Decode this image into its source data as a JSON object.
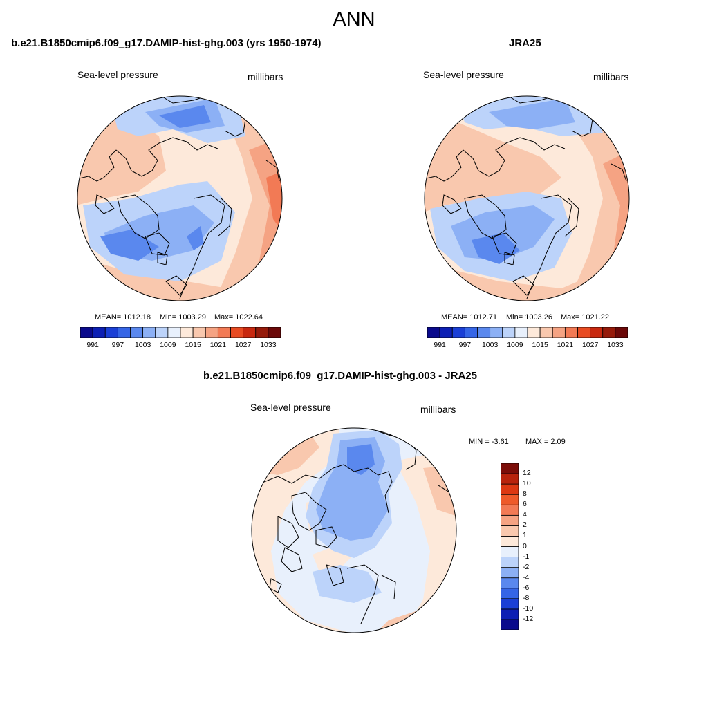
{
  "figure": {
    "title": "ANN"
  },
  "panels": {
    "model": {
      "title": "b.e21.B1850cmip6.f09_g17.DAMIP-hist-ghg.003 (yrs 1950-1974)",
      "left_label": "Sea-level pressure",
      "right_label": "millibars",
      "stats": {
        "mean": "MEAN= 1012.18",
        "min": "Min= 1003.29",
        "max": "Max= 1022.64"
      }
    },
    "obs": {
      "title": "JRA25",
      "left_label": "Sea-level pressure",
      "right_label": "millibars",
      "stats": {
        "mean": "MEAN= 1012.71",
        "min": "Min= 1003.26",
        "max": "Max= 1021.22"
      }
    },
    "diff": {
      "title": "b.e21.B1850cmip6.f09_g17.DAMIP-hist-ghg.003 - JRA25",
      "left_label": "Sea-level pressure",
      "right_label": "millibars",
      "stats": {
        "min": "MIN =  -3.61",
        "max": "MAX =   2.09"
      }
    }
  },
  "colorbars": {
    "field": {
      "colors": [
        "#0a0a8c",
        "#0c1fb4",
        "#1a3fd6",
        "#3565e6",
        "#5a88ee",
        "#8cb0f5",
        "#bcd3fa",
        "#e8f0fc",
        "#fde9da",
        "#f9c8ae",
        "#f5a383",
        "#f27a55",
        "#e84b22",
        "#c8280f",
        "#961a0a",
        "#6b0808"
      ],
      "labels": [
        "991",
        "997",
        "1003",
        "1009",
        "1015",
        "1021",
        "1027",
        "1033"
      ]
    },
    "diff": {
      "colors": [
        "#0a0a8c",
        "#0c1fb4",
        "#1a3fd6",
        "#3565e6",
        "#5a88ee",
        "#8cb0f5",
        "#bcd3fa",
        "#e8f0fc",
        "#fde9da",
        "#f9c8ae",
        "#f5a383",
        "#f27a55",
        "#ee5a2a",
        "#dc3812",
        "#b8230c",
        "#7c0d08"
      ],
      "labels": [
        "-12",
        "-10",
        "-8",
        "-6",
        "-4",
        "-2",
        "-1",
        "0",
        "1",
        "2",
        "4",
        "6",
        "8",
        "10",
        "12"
      ]
    }
  }
}
